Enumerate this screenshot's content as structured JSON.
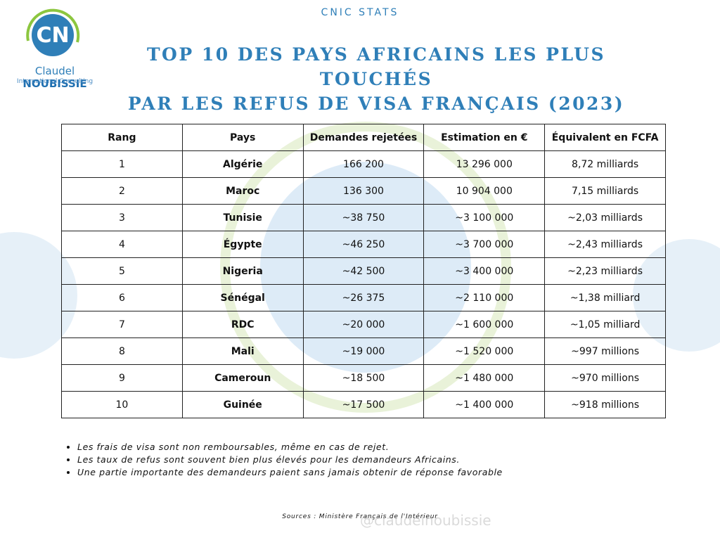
{
  "header": {
    "kicker": "CNIC STATS",
    "brand_first": "Claudel",
    "brand_last": "NOUBISSIE",
    "brand_sub": "International Consulting",
    "title": [
      "TOP 10 DES PAYS AFRICAINS LES PLUS TOUCHÉS",
      "PAR LES REFUS DE VISA FRANÇAIS (2023)"
    ]
  },
  "table": {
    "columns": [
      "Rang",
      "Pays",
      "Demandes rejetées",
      "Estimation en €",
      "Équivalent en FCFA"
    ],
    "rows": [
      [
        "1",
        "Algérie",
        "166 200",
        "13 296 000",
        "8,72 milliards"
      ],
      [
        "2",
        "Maroc",
        "136 300",
        "10 904 000",
        "7,15 milliards"
      ],
      [
        "3",
        "Tunisie",
        "~38 750",
        "~3 100 000",
        "~2,03 milliards"
      ],
      [
        "4",
        "Égypte",
        "~46 250",
        "~3 700 000",
        "~2,43 milliards"
      ],
      [
        "5",
        "Nigeria",
        "~42 500",
        "~3 400 000",
        "~2,23 milliards"
      ],
      [
        "6",
        "Sénégal",
        "~26 375",
        "~2 110 000",
        "~1,38 milliard"
      ],
      [
        "7",
        "RDC",
        "~20 000",
        "~1 600 000",
        "~1,05 milliard"
      ],
      [
        "8",
        "Mali",
        "~19 000",
        "~1 520 000",
        "~997 millions"
      ],
      [
        "9",
        "Cameroun",
        "~18 500",
        "~1 480 000",
        "~970 millions"
      ],
      [
        "10",
        "Guinée",
        "~17 500",
        "~1 400 000",
        "~918 millions"
      ]
    ]
  },
  "notes": [
    "Les frais de visa sont non remboursables, même en cas de rejet.",
    "Les taux de refus sont souvent bien plus élevés pour les demandeurs Africains.",
    "Une partie importante des demandeurs paient sans jamais obtenir de réponse favorable"
  ],
  "footer": {
    "sources": "Sources : Ministère Français de l'Intérieur",
    "handle": "@claudelnoubissie"
  }
}
